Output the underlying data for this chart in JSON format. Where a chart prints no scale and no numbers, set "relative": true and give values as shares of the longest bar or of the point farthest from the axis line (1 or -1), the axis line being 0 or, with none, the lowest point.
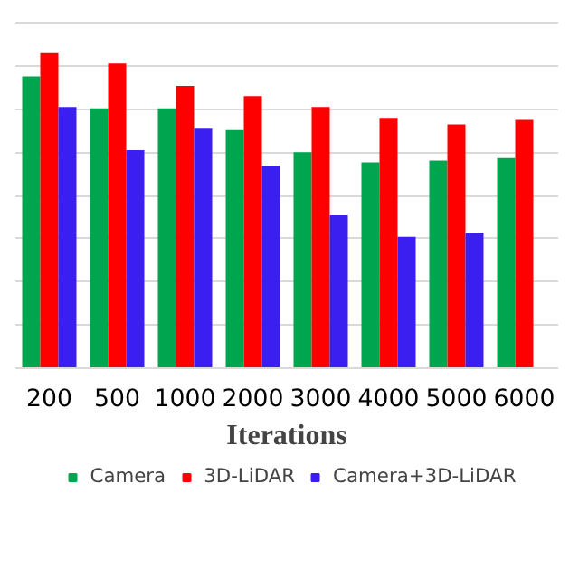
{
  "chart_data": {
    "type": "bar",
    "relative": true,
    "xlabel": "Iterations",
    "categories": [
      "200",
      "500",
      "1000",
      "2000",
      "3000",
      "4000",
      "5000",
      "6000"
    ],
    "series": [
      {
        "name": "Camera",
        "color": "#00a550",
        "values": [
          0.926,
          0.825,
          0.825,
          0.756,
          0.686,
          0.653,
          0.659,
          0.667
        ]
      },
      {
        "name": "3D-LiDAR",
        "color": "#ff0000",
        "values": [
          1,
          0.967,
          0.896,
          0.864,
          0.829,
          0.795,
          0.774,
          0.788
        ]
      },
      {
        "name": "Camera+3D-LiDAR",
        "color": "#3a1ff0",
        "values": [
          0.829,
          0.692,
          0.76,
          0.643,
          0.485,
          0.417,
          0.431,
          null
        ]
      }
    ],
    "grid": "y",
    "legend": "bottom"
  }
}
